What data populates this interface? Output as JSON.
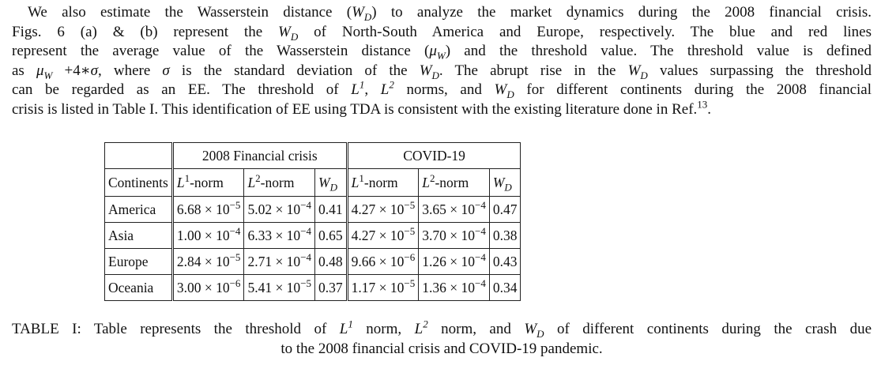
{
  "paragraph": {
    "l1_a": "We also estimate the Wasserstein distance (",
    "l1_b": ") to analyze the market dynamics during the 2008 financial crisis.",
    "l2_a": "Figs. 6 (a) & (b) represent the ",
    "l2_b": " of North-South America and Europe, respectively.  The blue and red lines",
    "l3_a": "represent the average value of the Wasserstein distance (",
    "l3_b": ") and the threshold value. The threshold value is defined",
    "l4_a": "as ",
    "l4_b": " +4∗",
    "l4_c": ", where ",
    "l4_d": " is the standard deviation of the ",
    "l4_e": ". The abrupt rise in the ",
    "l4_f": " values surpassing the threshold",
    "l5_a": "can be regarded as an EE. The threshold of ",
    "l5_b": ", ",
    "l5_c": " norms, and ",
    "l5_d": " for different continents during the 2008 financial",
    "l6_a": "crisis is listed in Table I. This identification of EE using TDA is consistent with the existing literature done in Ref.",
    "l6_ref": "13",
    "l6_end": ".",
    "W": "W",
    "D": "D",
    "mu": "μ",
    "sigma": "σ",
    "L": "L",
    "sup1": "1",
    "sup2": "2"
  },
  "table": {
    "group_2008": "2008 Financial crisis",
    "group_covid": "COVID-19",
    "col_continents": "Continents",
    "col_l1": "-norm",
    "col_l2": "-norm",
    "rows": [
      {
        "continent": "America",
        "f_l1": "6.68 × 10",
        "f_l1_exp": "−5",
        "f_l2": "5.02 × 10",
        "f_l2_exp": "−4",
        "f_wd": "0.41",
        "c_l1": "4.27 × 10",
        "c_l1_exp": "−5",
        "c_l2": "3.65 × 10",
        "c_l2_exp": "−4",
        "c_wd": "0.47"
      },
      {
        "continent": "Asia",
        "f_l1": "1.00 × 10",
        "f_l1_exp": "−4",
        "f_l2": "6.33 × 10",
        "f_l2_exp": "−4",
        "f_wd": "0.65",
        "c_l1": "4.27 × 10",
        "c_l1_exp": "−5",
        "c_l2": "3.70 × 10",
        "c_l2_exp": "−4",
        "c_wd": "0.38"
      },
      {
        "continent": "Europe",
        "f_l1": "2.84 × 10",
        "f_l1_exp": "−5",
        "f_l2": "2.71 × 10",
        "f_l2_exp": "−4",
        "f_wd": "0.48",
        "c_l1": "9.66 × 10",
        "c_l1_exp": "−6",
        "c_l2": "1.26 × 10",
        "c_l2_exp": "−4",
        "c_wd": "0.43"
      },
      {
        "continent": "Oceania",
        "f_l1": "3.00 × 10",
        "f_l1_exp": "−6",
        "f_l2": "5.41 × 10",
        "f_l2_exp": "−5",
        "f_wd": "0.37",
        "c_l1": "1.17 × 10",
        "c_l1_exp": "−5",
        "c_l2": "1.36 × 10",
        "c_l2_exp": "−4",
        "c_wd": "0.34"
      }
    ]
  },
  "caption": {
    "c1_a": "TABLE I: Table represents the threshold of ",
    "c1_b": " norm, ",
    "c1_c": " norm, and ",
    "c1_d": " of different continents during the crash due",
    "c2": "to the 2008 financial crisis and COVID-19 pandemic."
  }
}
